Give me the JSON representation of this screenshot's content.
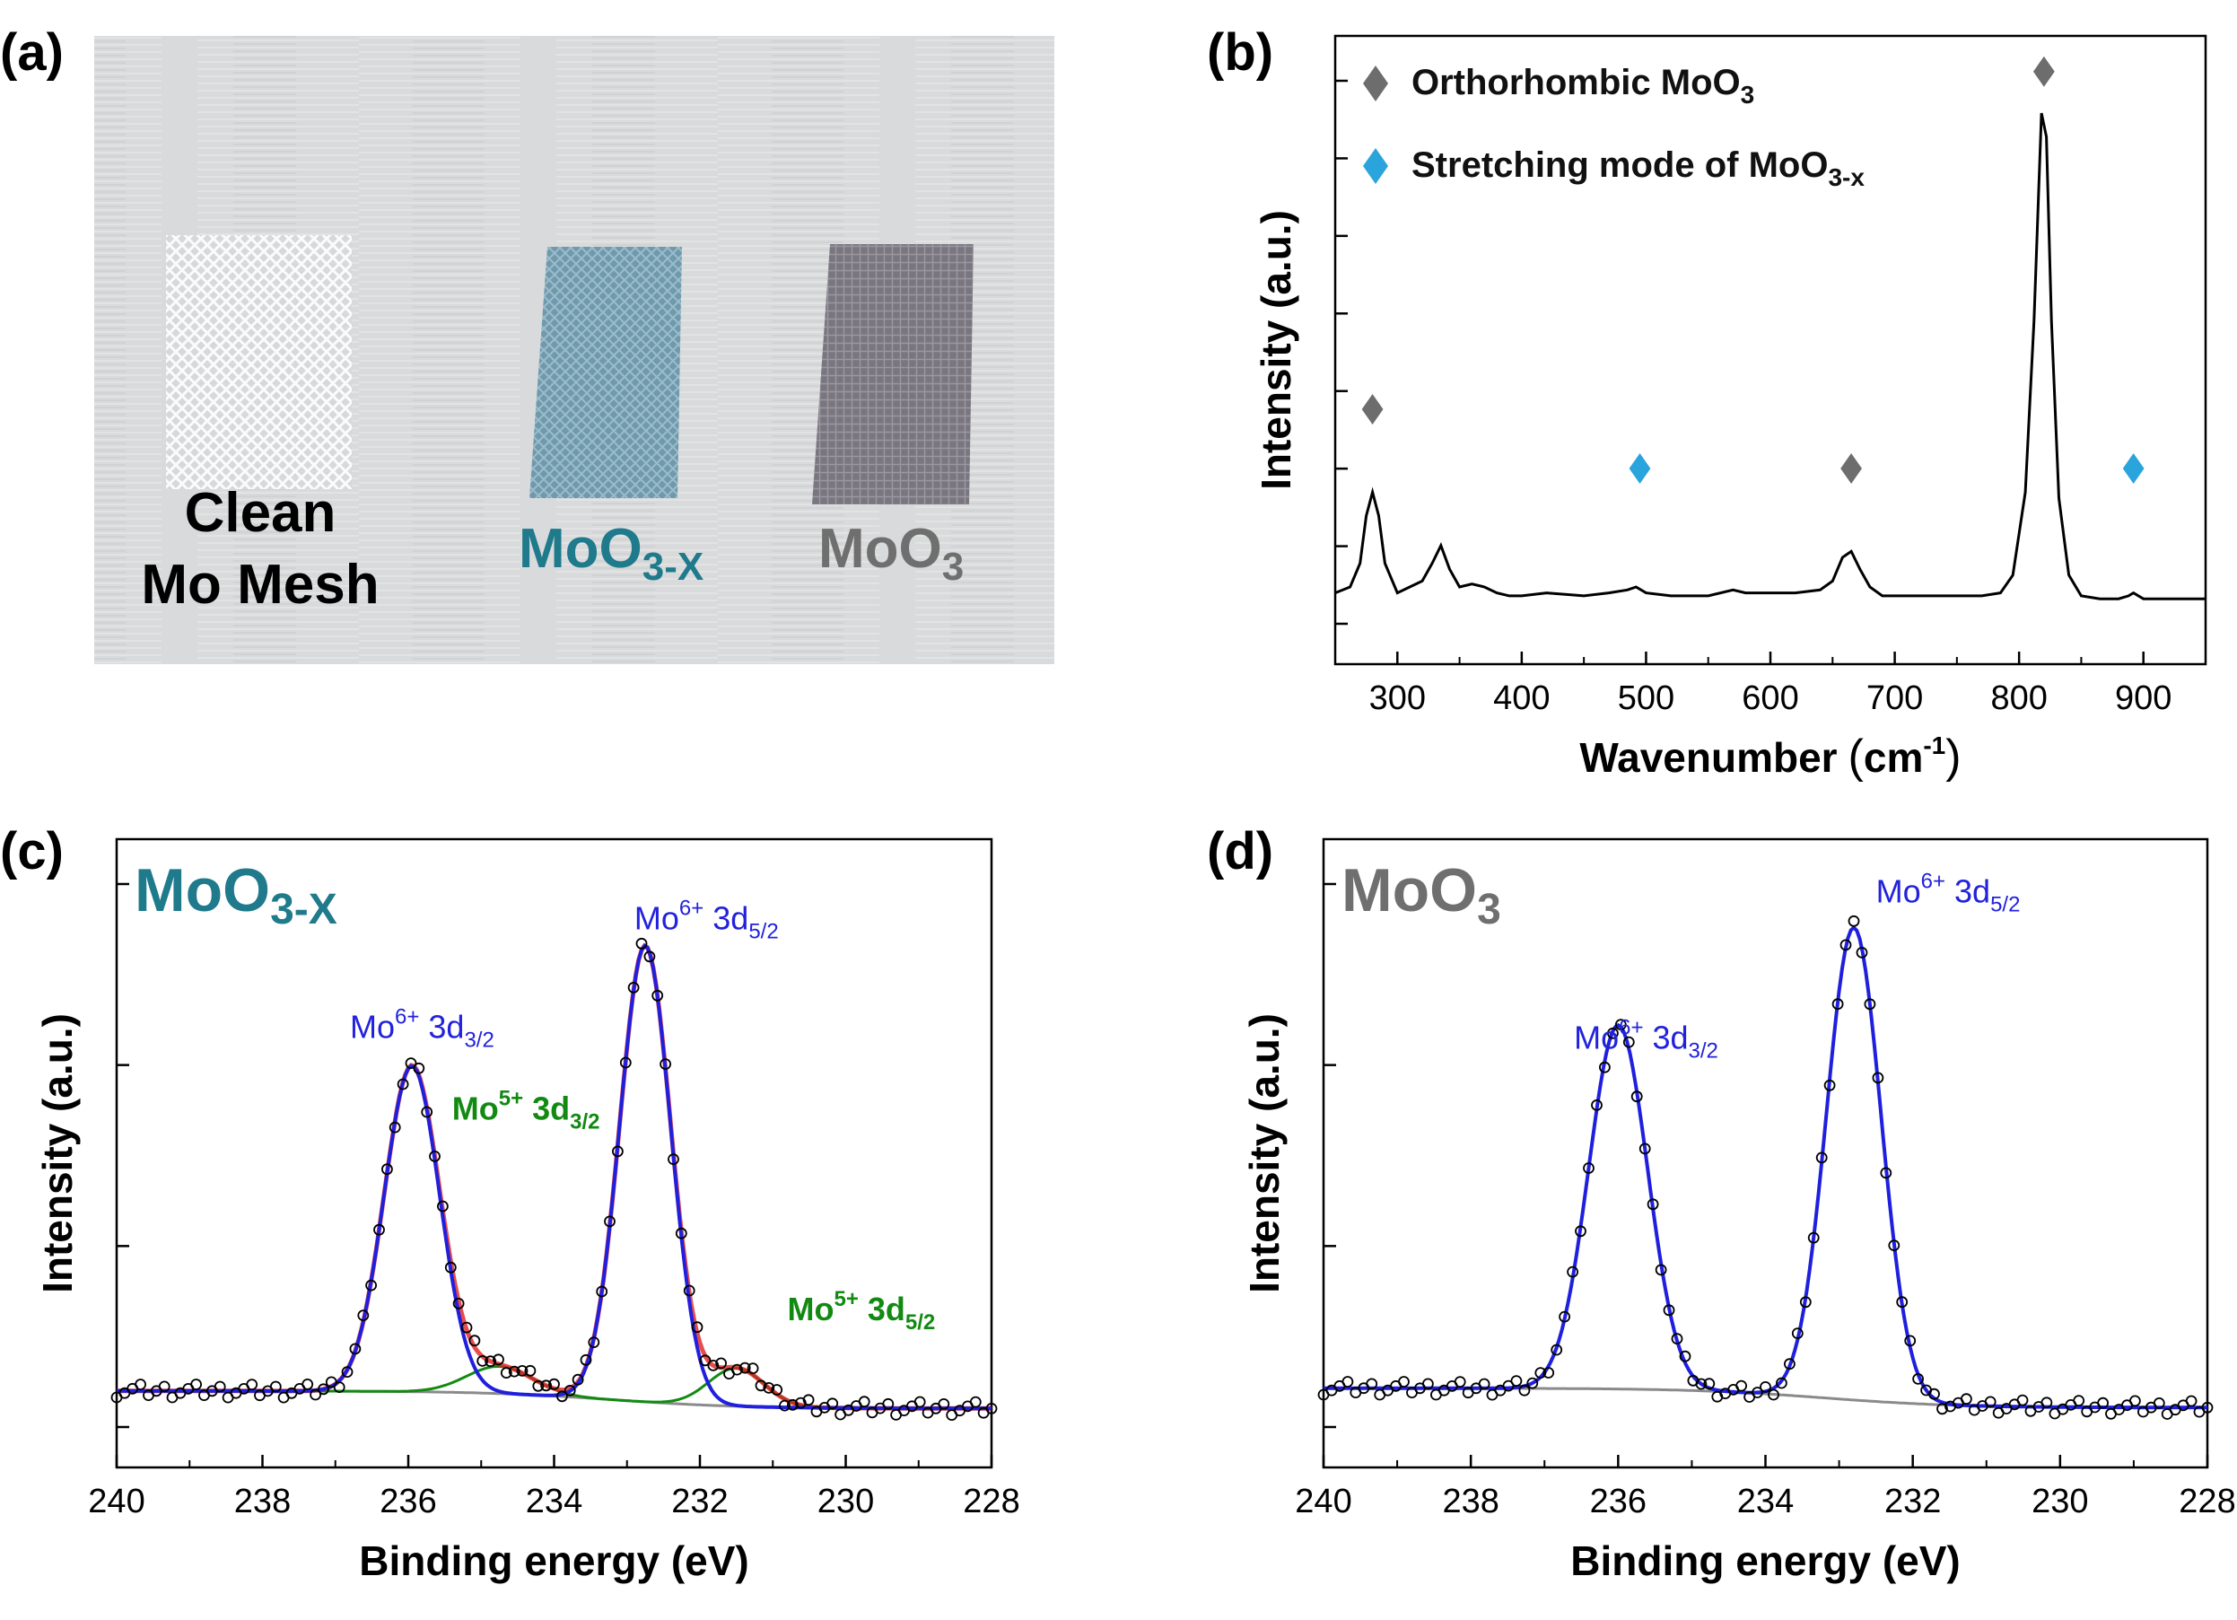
{
  "panels": {
    "a": {
      "label": "(a)",
      "samples": [
        {
          "line1": "Clean",
          "line2": "Mo Mesh",
          "color": "#000000"
        },
        {
          "base": "MoO",
          "sub": "3-X",
          "color": "#1f7a8c"
        },
        {
          "base": "MoO",
          "sub": "3",
          "color": "#6f6f6f"
        }
      ]
    },
    "b": {
      "label": "(b)"
    },
    "c": {
      "label": "(c)",
      "corner_base": "MoO",
      "corner_sub": "3-X",
      "corner_color": "#1f7a8c"
    },
    "d": {
      "label": "(d)",
      "corner_base": "MoO",
      "corner_sub": "3",
      "corner_color": "#6f6f6f"
    }
  },
  "chart_data": [
    {
      "panel": "b",
      "type": "line",
      "xlabel": "Wavenumber",
      "xunit_base": "cm",
      "xunit_sup": "-1",
      "ylabel": "Intensity (a.u.)",
      "xlim": [
        250,
        950
      ],
      "ylim": [
        0,
        1
      ],
      "xticks": [
        300,
        400,
        500,
        600,
        700,
        800,
        900
      ],
      "legend": [
        {
          "marker": "diamond",
          "color": "#6d6d6d",
          "text": "Orthorhombic MoO",
          "sub": "3",
          "sup": ""
        },
        {
          "marker": "diamond",
          "color": "#2aa4dc",
          "text": "Stretching mode of MoO",
          "sub": "3-x",
          "sup": ""
        }
      ],
      "series": [
        {
          "color": "#000000",
          "x": [
            250,
            262,
            270,
            275,
            280,
            285,
            290,
            300,
            310,
            320,
            328,
            335,
            342,
            350,
            360,
            370,
            380,
            390,
            400,
            420,
            450,
            470,
            485,
            492,
            500,
            520,
            550,
            570,
            580,
            600,
            620,
            640,
            650,
            658,
            665,
            672,
            680,
            690,
            700,
            720,
            750,
            770,
            785,
            795,
            805,
            812,
            818,
            822,
            826,
            832,
            840,
            850,
            865,
            880,
            888,
            892,
            900,
            920,
            950
          ],
          "y": [
            0.09,
            0.1,
            0.14,
            0.22,
            0.26,
            0.22,
            0.14,
            0.09,
            0.1,
            0.11,
            0.14,
            0.17,
            0.13,
            0.1,
            0.105,
            0.1,
            0.09,
            0.085,
            0.085,
            0.09,
            0.085,
            0.09,
            0.095,
            0.1,
            0.09,
            0.085,
            0.085,
            0.095,
            0.09,
            0.09,
            0.09,
            0.095,
            0.11,
            0.15,
            0.16,
            0.13,
            0.1,
            0.085,
            0.085,
            0.085,
            0.085,
            0.085,
            0.09,
            0.12,
            0.26,
            0.55,
            0.9,
            0.86,
            0.55,
            0.25,
            0.12,
            0.085,
            0.08,
            0.08,
            0.085,
            0.09,
            0.08,
            0.08,
            0.08
          ]
        }
      ],
      "markers": [
        {
          "x": 280,
          "y": 0.4,
          "color": "#6d6d6d"
        },
        {
          "x": 495,
          "y": 0.3,
          "color": "#2aa4dc"
        },
        {
          "x": 665,
          "y": 0.3,
          "color": "#6d6d6d"
        },
        {
          "x": 820,
          "y": 0.97,
          "color": "#6d6d6d"
        },
        {
          "x": 892,
          "y": 0.3,
          "color": "#2aa4dc"
        }
      ]
    },
    {
      "panel": "c",
      "type": "line",
      "xlabel": "Binding energy (eV)",
      "ylabel": "Intensity (a.u.)",
      "xlim": [
        240,
        228
      ],
      "ylim": [
        0,
        1
      ],
      "xticks": [
        240,
        238,
        236,
        234,
        232,
        230,
        228
      ],
      "annotations": [
        {
          "base": "Mo",
          "sup": "6+",
          "mid": " 3d",
          "sub": "3/2",
          "x": 236.8,
          "y": 0.7,
          "color": "#2222dd",
          "bold": false
        },
        {
          "base": "Mo",
          "sup": "6+",
          "mid": " 3d",
          "sub": "5/2",
          "x": 232.9,
          "y": 0.9,
          "color": "#2222dd",
          "bold": false
        },
        {
          "base": "Mo",
          "sup": "5+",
          "mid": " 3d",
          "sub": "3/2",
          "x": 235.4,
          "y": 0.55,
          "color": "#128a12",
          "bold": true
        },
        {
          "base": "Mo",
          "sup": "5+",
          "mid": " 3d",
          "sub": "5/2",
          "x": 230.8,
          "y": 0.18,
          "color": "#128a12",
          "bold": true
        }
      ],
      "peaks": {
        "background_left": 0.05,
        "background_right": 0.0,
        "mo6_32": {
          "center": 235.95,
          "height": 0.6,
          "width": 0.38
        },
        "mo6_52": {
          "center": 232.75,
          "height": 0.84,
          "width": 0.35
        },
        "mo5_32": {
          "center": 234.75,
          "height": 0.05,
          "width": 0.45
        },
        "mo5_52": {
          "center": 231.5,
          "height": 0.07,
          "width": 0.38
        }
      },
      "series": [
        {
          "name": "Data",
          "style": "circles",
          "color": "#000000"
        },
        {
          "name": "Envelope",
          "style": "line",
          "color": "#e02020"
        },
        {
          "name": "Mo6+",
          "style": "line",
          "color": "#1f1fdd"
        },
        {
          "name": "Mo5+",
          "style": "line",
          "color": "#128a12"
        },
        {
          "name": "Background",
          "style": "line",
          "color": "#8a8a8a"
        }
      ]
    },
    {
      "panel": "d",
      "type": "line",
      "xlabel": "Binding energy (eV)",
      "ylabel": "Intensity (a.u.)",
      "xlim": [
        240,
        228
      ],
      "ylim": [
        0,
        1
      ],
      "xticks": [
        240,
        238,
        236,
        234,
        232,
        230,
        228
      ],
      "annotations": [
        {
          "base": "Mo",
          "sup": "6+",
          "mid": " 3d",
          "sub": "3/2",
          "x": 236.6,
          "y": 0.68,
          "color": "#2222dd",
          "bold": false
        },
        {
          "base": "Mo",
          "sup": "6+",
          "mid": " 3d",
          "sub": "5/2",
          "x": 232.5,
          "y": 0.95,
          "color": "#2222dd",
          "bold": false
        }
      ],
      "peaks": {
        "background_left": 0.055,
        "background_right": 0.0,
        "mo6_32": {
          "center": 236.0,
          "height": 0.67,
          "width": 0.4
        },
        "mo6_52": {
          "center": 232.8,
          "height": 0.87,
          "width": 0.37
        }
      },
      "series": [
        {
          "name": "Data",
          "style": "circles",
          "color": "#000000"
        },
        {
          "name": "Fit",
          "style": "line",
          "color": "#1f1fdd"
        },
        {
          "name": "Background",
          "style": "line",
          "color": "#8a8a8a"
        }
      ]
    }
  ]
}
